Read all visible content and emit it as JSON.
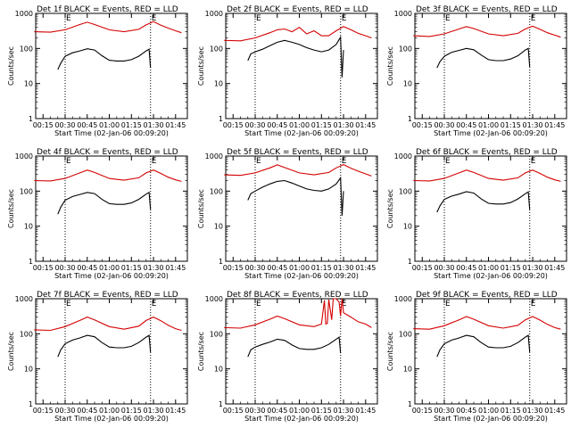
{
  "chart_data": [
    {
      "type": "line",
      "title": "Det 1f BLACK = Events, RED = LLD",
      "xlabel": "Start Time (02-Jan-06 00:09:20)",
      "ylabel": "Counts/sec",
      "yscale": "log",
      "ylim": [
        1,
        1000
      ],
      "xlim_minutes": [
        10,
        113
      ],
      "x_ticks": [
        "00:15",
        "00:30",
        "00:45",
        "01:00",
        "01:15",
        "01:30",
        "01:45"
      ],
      "y_ticks": [
        "1",
        "10",
        "100",
        "1000"
      ],
      "markers": [
        {
          "label": "E",
          "x": "00:30"
        },
        {
          "label": "E",
          "x": "01:28"
        }
      ],
      "series": [
        {
          "name": "LLD",
          "color": "#d40000",
          "x": [
            "00:09",
            "00:20",
            "00:30",
            "00:40",
            "00:45",
            "00:50",
            "01:00",
            "01:10",
            "01:20",
            "01:25",
            "01:30",
            "01:35",
            "01:40",
            "01:45",
            "01:49"
          ],
          "y": [
            300,
            290,
            340,
            480,
            560,
            480,
            340,
            300,
            350,
            470,
            580,
            460,
            380,
            320,
            280
          ]
        },
        {
          "name": "Events",
          "color": "#000000",
          "x": [
            "00:25",
            "00:27",
            "00:30",
            "00:35",
            "00:40",
            "00:45",
            "00:50",
            "00:55",
            "01:00",
            "01:05",
            "01:10",
            "01:15",
            "01:20",
            "01:25",
            "01:27",
            "01:28"
          ],
          "y": [
            25,
            38,
            60,
            75,
            85,
            98,
            90,
            62,
            46,
            44,
            44,
            48,
            60,
            85,
            95,
            28
          ]
        }
      ]
    },
    {
      "type": "line",
      "title": "Det 2f BLACK = Events, RED = LLD",
      "xlabel": "Start Time (02-Jan-06 00:09:20)",
      "ylabel": "Counts/sec",
      "yscale": "log",
      "ylim": [
        1,
        1000
      ],
      "xlim_minutes": [
        10,
        113
      ],
      "x_ticks": [
        "00:15",
        "00:30",
        "00:45",
        "01:00",
        "01:15",
        "01:30",
        "01:45"
      ],
      "y_ticks": [
        "1",
        "10",
        "100",
        "1000"
      ],
      "markers": [
        {
          "label": "E",
          "x": "00:30"
        },
        {
          "label": "E",
          "x": "01:28"
        }
      ],
      "series": [
        {
          "name": "LLD",
          "color": "#d40000",
          "x": [
            "00:09",
            "00:20",
            "00:30",
            "00:40",
            "00:45",
            "00:50",
            "00:55",
            "01:00",
            "01:05",
            "01:10",
            "01:15",
            "01:20",
            "01:25",
            "01:30",
            "01:35",
            "01:40",
            "01:45",
            "01:49"
          ],
          "y": [
            170,
            165,
            200,
            280,
            340,
            360,
            300,
            400,
            260,
            320,
            230,
            230,
            320,
            420,
            340,
            270,
            230,
            200
          ]
        },
        {
          "name": "Events",
          "color": "#000000",
          "x": [
            "00:25",
            "00:27",
            "00:30",
            "00:35",
            "00:40",
            "00:45",
            "00:50",
            "00:55",
            "01:00",
            "01:05",
            "01:10",
            "01:15",
            "01:20",
            "01:25",
            "01:27",
            "01:28",
            "01:29",
            "01:30"
          ],
          "y": [
            45,
            70,
            80,
            95,
            120,
            150,
            170,
            150,
            130,
            105,
            90,
            80,
            90,
            130,
            180,
            210,
            15,
            90
          ]
        }
      ]
    },
    {
      "type": "line",
      "title": "Det 3f BLACK = Events, RED = LLD",
      "xlabel": "Start Time (02-Jan-06 00:09:20)",
      "ylabel": "Counts/sec",
      "yscale": "log",
      "ylim": [
        1,
        1000
      ],
      "xlim_minutes": [
        10,
        113
      ],
      "x_ticks": [
        "00:15",
        "00:30",
        "00:45",
        "01:00",
        "01:15",
        "01:30",
        "01:45"
      ],
      "y_ticks": [
        "1",
        "10",
        "100",
        "1000"
      ],
      "markers": [
        {
          "label": "E",
          "x": "00:30"
        },
        {
          "label": "E",
          "x": "01:28"
        }
      ],
      "series": [
        {
          "name": "LLD",
          "color": "#d40000",
          "x": [
            "00:09",
            "00:20",
            "00:30",
            "00:40",
            "00:45",
            "00:50",
            "01:00",
            "01:10",
            "01:20",
            "01:25",
            "01:30",
            "01:35",
            "01:40",
            "01:45",
            "01:49"
          ],
          "y": [
            230,
            220,
            260,
            360,
            420,
            370,
            260,
            230,
            270,
            360,
            430,
            350,
            280,
            240,
            210
          ]
        },
        {
          "name": "Events",
          "color": "#000000",
          "x": [
            "00:25",
            "00:27",
            "00:30",
            "00:35",
            "00:40",
            "00:45",
            "00:50",
            "00:55",
            "01:00",
            "01:05",
            "01:10",
            "01:15",
            "01:20",
            "01:25",
            "01:27",
            "01:28"
          ],
          "y": [
            28,
            42,
            60,
            78,
            88,
            100,
            92,
            65,
            48,
            45,
            45,
            50,
            62,
            90,
            100,
            30
          ]
        }
      ]
    },
    {
      "type": "line",
      "title": "Det 4f BLACK = Events, RED = LLD",
      "xlabel": "Start Time (02-Jan-06 00:09:20)",
      "ylabel": "Counts/sec",
      "yscale": "log",
      "ylim": [
        1,
        1000
      ],
      "xlim_minutes": [
        10,
        113
      ],
      "x_ticks": [
        "00:15",
        "00:30",
        "00:45",
        "01:00",
        "01:15",
        "01:30",
        "01:45"
      ],
      "y_ticks": [
        "1",
        "10",
        "100",
        "1000"
      ],
      "markers": [
        {
          "label": "E",
          "x": "00:30"
        },
        {
          "label": "E",
          "x": "01:28"
        }
      ],
      "series": [
        {
          "name": "LLD",
          "color": "#d40000",
          "x": [
            "00:09",
            "00:20",
            "00:30",
            "00:40",
            "00:45",
            "00:50",
            "01:00",
            "01:10",
            "01:20",
            "01:25",
            "01:30",
            "01:35",
            "01:40",
            "01:45",
            "01:49"
          ],
          "y": [
            200,
            195,
            230,
            330,
            400,
            340,
            230,
            205,
            240,
            330,
            400,
            320,
            250,
            210,
            190
          ]
        },
        {
          "name": "Events",
          "color": "#000000",
          "x": [
            "00:25",
            "00:27",
            "00:30",
            "00:35",
            "00:40",
            "00:45",
            "00:50",
            "00:55",
            "01:00",
            "01:05",
            "01:10",
            "01:15",
            "01:20",
            "01:25",
            "01:27",
            "01:28"
          ],
          "y": [
            22,
            35,
            55,
            70,
            80,
            92,
            85,
            58,
            44,
            42,
            42,
            46,
            58,
            82,
            92,
            30
          ]
        }
      ]
    },
    {
      "type": "line",
      "title": "Det 5f BLACK = Events, RED = LLD",
      "xlabel": "Start Time (02-Jan-06 00:09:20)",
      "ylabel": "Counts/sec",
      "yscale": "log",
      "ylim": [
        1,
        1000
      ],
      "xlim_minutes": [
        10,
        113
      ],
      "x_ticks": [
        "00:15",
        "00:30",
        "00:45",
        "01:00",
        "01:15",
        "01:30",
        "01:45"
      ],
      "y_ticks": [
        "1",
        "10",
        "100",
        "1000"
      ],
      "markers": [
        {
          "label": "E",
          "x": "00:30"
        },
        {
          "label": "E",
          "x": "01:28"
        }
      ],
      "series": [
        {
          "name": "LLD",
          "color": "#d40000",
          "x": [
            "00:09",
            "00:20",
            "00:30",
            "00:40",
            "00:45",
            "00:50",
            "01:00",
            "01:10",
            "01:20",
            "01:25",
            "01:30",
            "01:35",
            "01:40",
            "01:45",
            "01:49"
          ],
          "y": [
            290,
            280,
            330,
            460,
            560,
            470,
            330,
            290,
            340,
            460,
            570,
            450,
            370,
            310,
            270
          ]
        },
        {
          "name": "Events",
          "color": "#000000",
          "x": [
            "00:25",
            "00:27",
            "00:30",
            "00:35",
            "00:40",
            "00:45",
            "00:50",
            "00:55",
            "01:00",
            "01:05",
            "01:10",
            "01:15",
            "01:20",
            "01:25",
            "01:27",
            "01:28",
            "01:29",
            "01:30"
          ],
          "y": [
            55,
            85,
            100,
            130,
            160,
            190,
            200,
            170,
            140,
            115,
            105,
            100,
            115,
            160,
            210,
            240,
            20,
            100
          ]
        }
      ]
    },
    {
      "type": "line",
      "title": "Det 6f BLACK = Events, RED = LLD",
      "xlabel": "Start Time (02-Jan-06 00:09:20)",
      "ylabel": "Counts/sec",
      "yscale": "log",
      "ylim": [
        1,
        1000
      ],
      "xlim_minutes": [
        10,
        113
      ],
      "x_ticks": [
        "00:15",
        "00:30",
        "00:45",
        "01:00",
        "01:15",
        "01:30",
        "01:45"
      ],
      "y_ticks": [
        "1",
        "10",
        "100",
        "1000"
      ],
      "markers": [
        {
          "label": "E",
          "x": "00:30"
        },
        {
          "label": "E",
          "x": "01:28"
        }
      ],
      "series": [
        {
          "name": "LLD",
          "color": "#d40000",
          "x": [
            "00:09",
            "00:20",
            "00:30",
            "00:40",
            "00:45",
            "00:50",
            "01:00",
            "01:10",
            "01:20",
            "01:25",
            "01:30",
            "01:35",
            "01:40",
            "01:45",
            "01:49"
          ],
          "y": [
            200,
            195,
            230,
            330,
            400,
            340,
            230,
            205,
            240,
            330,
            400,
            320,
            250,
            210,
            190
          ]
        },
        {
          "name": "Events",
          "color": "#000000",
          "x": [
            "00:25",
            "00:27",
            "00:30",
            "00:35",
            "00:40",
            "00:45",
            "00:50",
            "00:55",
            "01:00",
            "01:05",
            "01:10",
            "01:15",
            "01:20",
            "01:25",
            "01:27",
            "01:28"
          ],
          "y": [
            25,
            38,
            58,
            72,
            82,
            96,
            88,
            60,
            45,
            43,
            43,
            47,
            60,
            84,
            95,
            30
          ]
        }
      ]
    },
    {
      "type": "line",
      "title": "Det 7f BLACK = Events, RED = LLD",
      "xlabel": "Start Time (02-Jan-06 00:09:20)",
      "ylabel": "Counts/sec",
      "yscale": "log",
      "ylim": [
        1,
        1000
      ],
      "xlim_minutes": [
        10,
        113
      ],
      "x_ticks": [
        "00:15",
        "00:30",
        "00:45",
        "01:00",
        "01:15",
        "01:30",
        "01:45"
      ],
      "y_ticks": [
        "1",
        "10",
        "100",
        "1000"
      ],
      "markers": [
        {
          "label": "E",
          "x": "00:30"
        },
        {
          "label": "E",
          "x": "01:28"
        }
      ],
      "series": [
        {
          "name": "LLD",
          "color": "#d40000",
          "x": [
            "00:09",
            "00:20",
            "00:30",
            "00:40",
            "00:45",
            "00:50",
            "01:00",
            "01:10",
            "01:20",
            "01:25",
            "01:30",
            "01:35",
            "01:40",
            "01:45",
            "01:49"
          ],
          "y": [
            130,
            125,
            160,
            240,
            300,
            250,
            160,
            135,
            165,
            240,
            300,
            235,
            175,
            140,
            125
          ]
        },
        {
          "name": "Events",
          "color": "#000000",
          "x": [
            "00:25",
            "00:27",
            "00:30",
            "00:35",
            "00:40",
            "00:45",
            "00:50",
            "00:55",
            "01:00",
            "01:05",
            "01:10",
            "01:15",
            "01:20",
            "01:25",
            "01:27",
            "01:28"
          ],
          "y": [
            22,
            35,
            52,
            66,
            76,
            90,
            82,
            56,
            42,
            40,
            40,
            44,
            56,
            80,
            90,
            30
          ]
        }
      ]
    },
    {
      "type": "line",
      "title": "Det 8f BLACK = Events, RED = LLD",
      "xlabel": "Start Time (02-Jan-06 00:09:20)",
      "ylabel": "Counts/sec",
      "yscale": "log",
      "ylim": [
        1,
        1000
      ],
      "xlim_minutes": [
        10,
        113
      ],
      "x_ticks": [
        "00:15",
        "00:30",
        "00:45",
        "01:00",
        "01:15",
        "01:30",
        "01:45"
      ],
      "y_ticks": [
        "1",
        "10",
        "100",
        "1000"
      ],
      "markers": [
        {
          "label": "E",
          "x": "00:30"
        },
        {
          "label": "E",
          "x": "01:28"
        }
      ],
      "series": [
        {
          "name": "LLD",
          "color": "#d40000",
          "x": [
            "00:09",
            "00:20",
            "00:30",
            "00:40",
            "00:45",
            "00:50",
            "01:00",
            "01:10",
            "01:15",
            "01:17",
            "01:18",
            "01:19",
            "01:20",
            "01:22",
            "01:23",
            "01:25",
            "01:27",
            "01:28",
            "01:29",
            "01:30",
            "01:35",
            "01:40",
            "01:45",
            "01:49"
          ],
          "y": [
            150,
            145,
            180,
            260,
            320,
            270,
            180,
            160,
            190,
            900,
            190,
            200,
            950,
            250,
            1000,
            1000,
            800,
            320,
            1000,
            400,
            300,
            220,
            190,
            150
          ]
        },
        {
          "name": "Events",
          "color": "#000000",
          "x": [
            "00:25",
            "00:27",
            "00:30",
            "00:35",
            "00:40",
            "00:45",
            "00:50",
            "00:55",
            "01:00",
            "01:05",
            "01:10",
            "01:15",
            "01:20",
            "01:25",
            "01:27",
            "01:28"
          ],
          "y": [
            22,
            35,
            42,
            50,
            58,
            70,
            65,
            48,
            38,
            36,
            36,
            40,
            50,
            70,
            80,
            28
          ]
        }
      ]
    },
    {
      "type": "line",
      "title": "Det 9f BLACK = Events, RED = LLD",
      "xlabel": "Start Time (02-Jan-06 00:09:20)",
      "ylabel": "Counts/sec",
      "yscale": "log",
      "ylim": [
        1,
        1000
      ],
      "xlim_minutes": [
        10,
        113
      ],
      "x_ticks": [
        "00:15",
        "00:30",
        "00:45",
        "01:00",
        "01:15",
        "01:30",
        "01:45"
      ],
      "y_ticks": [
        "1",
        "10",
        "100",
        "1000"
      ],
      "markers": [
        {
          "label": "E",
          "x": "00:30"
        },
        {
          "label": "E",
          "x": "01:28"
        }
      ],
      "series": [
        {
          "name": "LLD",
          "color": "#d40000",
          "x": [
            "00:09",
            "00:20",
            "00:30",
            "00:40",
            "00:45",
            "00:50",
            "01:00",
            "01:10",
            "01:20",
            "01:25",
            "01:30",
            "01:35",
            "01:40",
            "01:45",
            "01:49"
          ],
          "y": [
            140,
            135,
            170,
            250,
            310,
            260,
            170,
            145,
            175,
            250,
            310,
            245,
            185,
            150,
            135
          ]
        },
        {
          "name": "Events",
          "color": "#000000",
          "x": [
            "00:25",
            "00:27",
            "00:30",
            "00:35",
            "00:40",
            "00:45",
            "00:50",
            "00:55",
            "01:00",
            "01:05",
            "01:10",
            "01:15",
            "01:20",
            "01:25",
            "01:27",
            "01:28"
          ],
          "y": [
            22,
            35,
            52,
            66,
            76,
            90,
            82,
            56,
            42,
            40,
            40,
            44,
            56,
            80,
            90,
            30
          ]
        }
      ]
    }
  ]
}
